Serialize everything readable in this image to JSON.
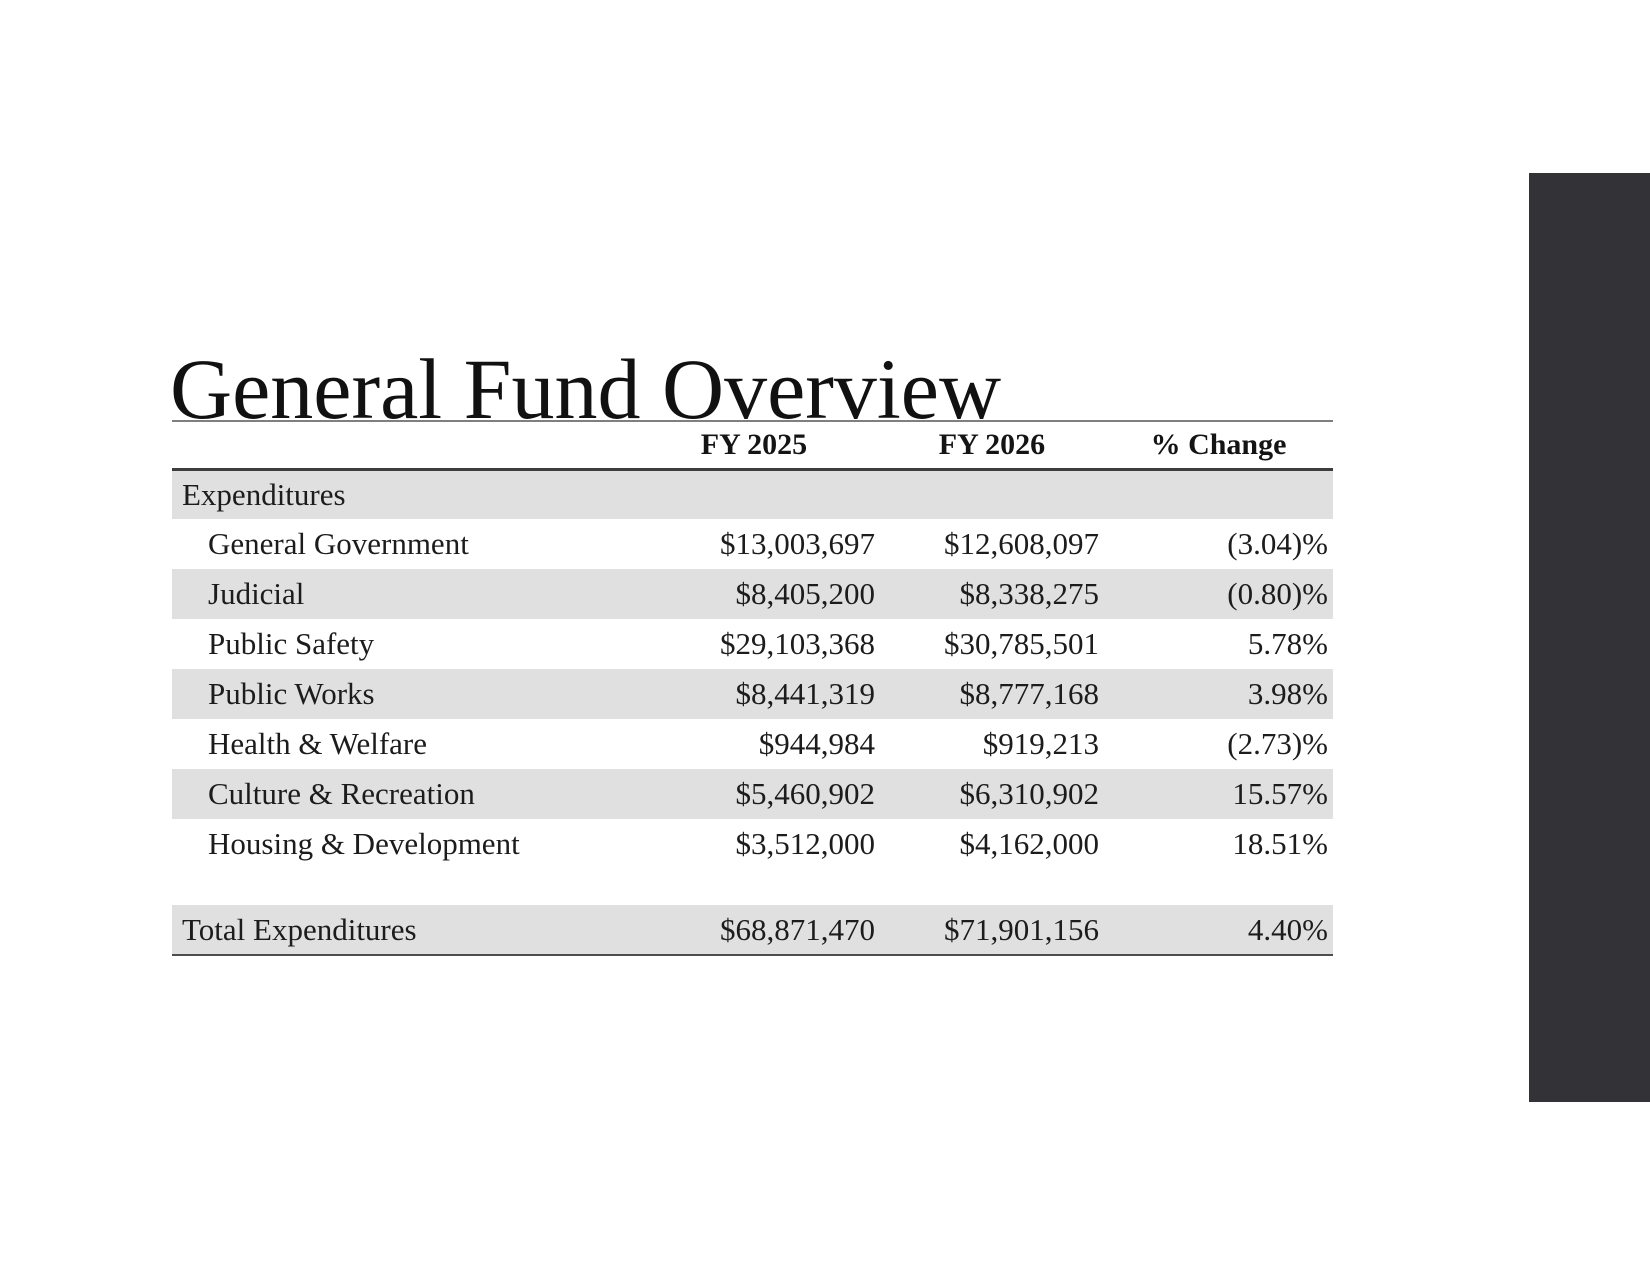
{
  "slide": {
    "title": "General Fund Overview",
    "accent_color": "#333337",
    "band_color": "#e0e0e0"
  },
  "table": {
    "columns": [
      "",
      "FY 2025",
      "FY 2026",
      "% Change"
    ],
    "rows": [
      {
        "type": "group",
        "shaded": true,
        "label": "Expenditures",
        "fy2025": "",
        "fy2026": "",
        "change": ""
      },
      {
        "type": "item",
        "shaded": false,
        "label": "General Government",
        "fy2025": "$13,003,697",
        "fy2026": "$12,608,097",
        "change": "(3.04)%"
      },
      {
        "type": "item",
        "shaded": true,
        "label": "Judicial",
        "fy2025": "$8,405,200",
        "fy2026": "$8,338,275",
        "change": "(0.80)%"
      },
      {
        "type": "item",
        "shaded": false,
        "label": "Public Safety",
        "fy2025": "$29,103,368",
        "fy2026": "$30,785,501",
        "change": "5.78%"
      },
      {
        "type": "item",
        "shaded": true,
        "label": "Public Works",
        "fy2025": "$8,441,319",
        "fy2026": "$8,777,168",
        "change": "3.98%"
      },
      {
        "type": "item",
        "shaded": false,
        "label": "Health & Welfare",
        "fy2025": "$944,984",
        "fy2026": "$919,213",
        "change": "(2.73)%"
      },
      {
        "type": "item",
        "shaded": true,
        "label": "Culture & Recreation",
        "fy2025": "$5,460,902",
        "fy2026": "$6,310,902",
        "change": "15.57%"
      },
      {
        "type": "item",
        "shaded": false,
        "label": "Housing & Development",
        "fy2025": "$3,512,000",
        "fy2026": "$4,162,000",
        "change": "18.51%"
      },
      {
        "type": "spacer",
        "shaded": false,
        "label": "",
        "fy2025": "",
        "fy2026": "",
        "change": ""
      },
      {
        "type": "total",
        "shaded": true,
        "label": "Total Expenditures",
        "fy2025": "$68,871,470",
        "fy2026": "$71,901,156",
        "change": "4.40%"
      }
    ]
  }
}
